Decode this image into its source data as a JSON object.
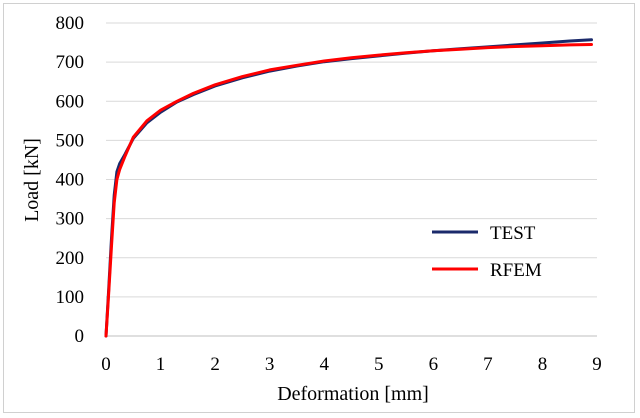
{
  "chart_data": {
    "type": "line",
    "title": "",
    "xlabel": "Deformation [mm]",
    "ylabel": "Load [kN]",
    "xlim": [
      0,
      9
    ],
    "ylim": [
      0,
      800
    ],
    "xticks": [
      "0",
      "1",
      "2",
      "3",
      "4",
      "5",
      "6",
      "7",
      "8",
      "9"
    ],
    "yticks": [
      "0",
      "100",
      "200",
      "300",
      "400",
      "500",
      "600",
      "700",
      "800"
    ],
    "grid": "horizontal",
    "legend_position": "right",
    "series": [
      {
        "name": "TEST",
        "color": "#1b2a6b",
        "x": [
          0,
          0.05,
          0.1,
          0.15,
          0.2,
          0.25,
          0.35,
          0.5,
          0.75,
          1.0,
          1.3,
          1.6,
          2.0,
          2.5,
          3.0,
          3.5,
          4.0,
          4.5,
          5.0,
          5.5,
          6.0,
          6.5,
          7.0,
          7.5,
          8.0,
          8.5,
          8.9
        ],
        "y": [
          0,
          120,
          250,
          360,
          420,
          440,
          465,
          505,
          545,
          572,
          598,
          617,
          639,
          660,
          677,
          690,
          701,
          709,
          716,
          723,
          729,
          734,
          739,
          744,
          749,
          754,
          757
        ]
      },
      {
        "name": "RFEM",
        "color": "#ff0000",
        "x": [
          0,
          0.05,
          0.1,
          0.15,
          0.2,
          0.25,
          0.35,
          0.5,
          0.75,
          1.0,
          1.3,
          1.6,
          2.0,
          2.5,
          3.0,
          3.5,
          4.0,
          4.5,
          5.0,
          5.5,
          6.0,
          6.5,
          7.0,
          7.5,
          8.0,
          8.5,
          8.9
        ],
        "y": [
          0,
          110,
          230,
          340,
          400,
          425,
          460,
          508,
          550,
          577,
          600,
          620,
          642,
          663,
          680,
          692,
          703,
          711,
          718,
          724,
          729,
          733,
          737,
          740,
          742,
          744,
          745
        ]
      }
    ]
  }
}
